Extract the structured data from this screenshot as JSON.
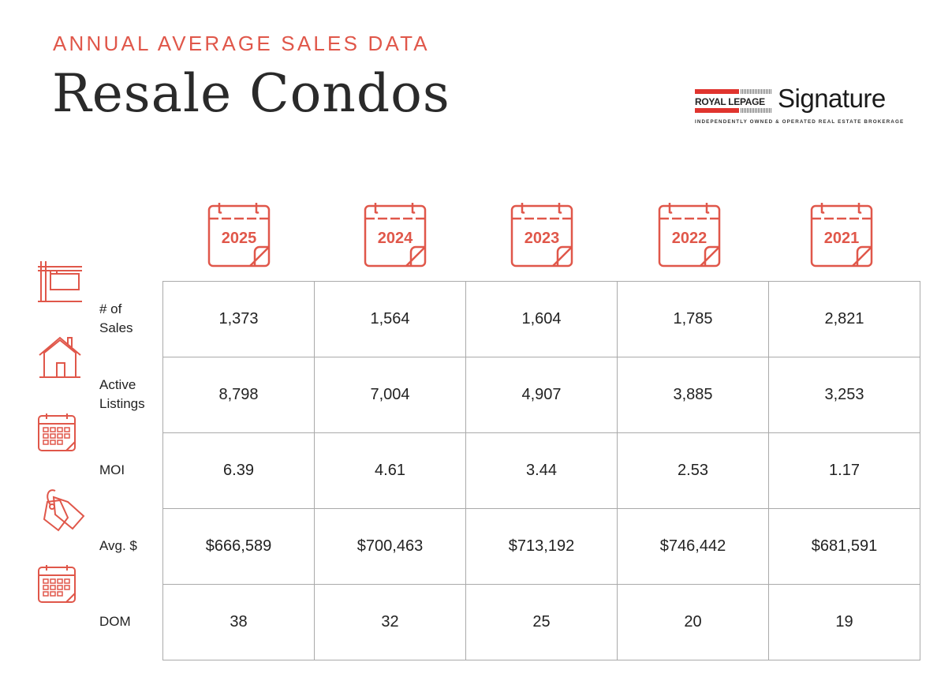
{
  "header": {
    "subtitle": "ANNUAL AVERAGE SALES DATA",
    "title": "Resale Condos"
  },
  "logo": {
    "brand": "ROYAL LEPAGE",
    "name": "Signature",
    "tagline": "INDEPENDENTLY OWNED & OPERATED REAL ESTATE BROKERAGE"
  },
  "accent_color": "#e0574a",
  "years": [
    "2025",
    "2024",
    "2023",
    "2022",
    "2021"
  ],
  "rows": [
    {
      "label": "# of\nSales",
      "icon": "for-sale-sign-icon",
      "values": [
        "1,373",
        "1,564",
        "1,604",
        "1,785",
        "2,821"
      ]
    },
    {
      "label": "Active\nListings",
      "icon": "house-icon",
      "values": [
        "8,798",
        "7,004",
        "4,907",
        "3,885",
        "3,253"
      ]
    },
    {
      "label": "MOI",
      "icon": "calendar-grid-icon",
      "values": [
        "6.39",
        "4.61",
        "3.44",
        "2.53",
        "1.17"
      ]
    },
    {
      "label": "Avg. $",
      "icon": "price-tag-icon",
      "values": [
        "$666,589",
        "$700,463",
        "$713,192",
        "$746,442",
        "$681,591"
      ]
    },
    {
      "label": "DOM",
      "icon": "calendar-grid-icon",
      "values": [
        "38",
        "32",
        "25",
        "20",
        "19"
      ]
    }
  ]
}
